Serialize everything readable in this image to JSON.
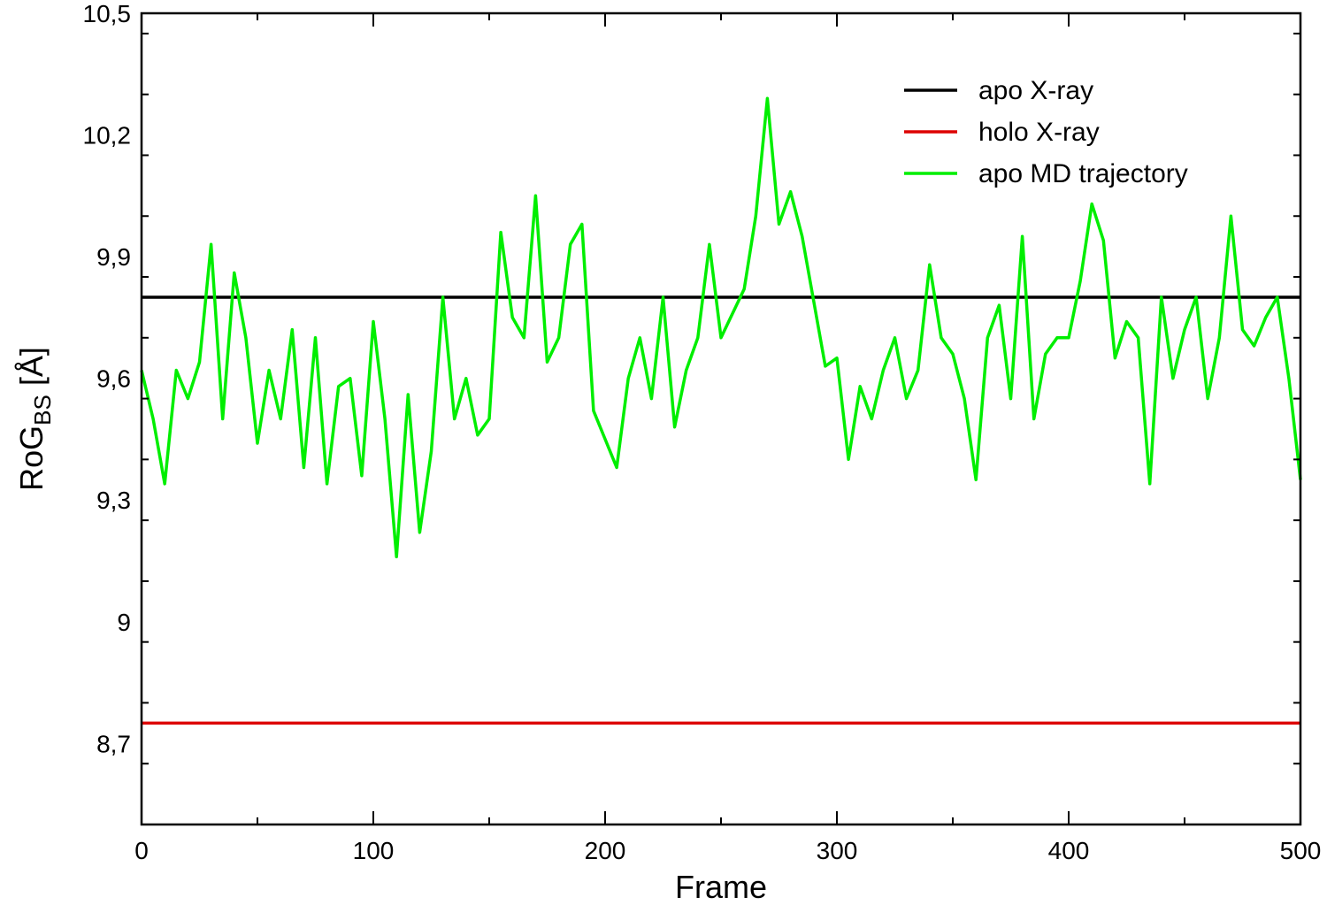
{
  "chart_data": {
    "type": "line",
    "xlabel": "Frame",
    "ylabel_main": "RoG",
    "ylabel_sub": "BS",
    "ylabel_unit": " [Å]",
    "xlim": [
      0,
      500
    ],
    "ylim": [
      8.5,
      10.5
    ],
    "x_ticks": [
      0,
      100,
      200,
      300,
      400,
      500
    ],
    "x_tick_labels": [
      "0",
      "100",
      "200",
      "300",
      "400",
      "500"
    ],
    "y_ticks": [
      8.7,
      9.0,
      9.3,
      9.6,
      9.9,
      10.2,
      10.5
    ],
    "y_tick_labels": [
      "8,7",
      "9",
      "9,3",
      "9,6",
      "9,9",
      "10,2",
      "10,5"
    ],
    "legend_position": "top-right",
    "series": [
      {
        "name": "apo X-ray",
        "color": "#000000",
        "kind": "hline",
        "value": 9.8
      },
      {
        "name": "holo X-ray",
        "color": "#dd0000",
        "kind": "hline",
        "value": 8.75
      },
      {
        "name": "apo MD trajectory",
        "color": "#00ee00",
        "kind": "line",
        "x": [
          0,
          5,
          10,
          15,
          20,
          25,
          30,
          35,
          40,
          45,
          50,
          55,
          60,
          65,
          70,
          75,
          80,
          85,
          90,
          95,
          100,
          105,
          110,
          115,
          120,
          125,
          130,
          135,
          140,
          145,
          150,
          155,
          160,
          165,
          170,
          175,
          180,
          185,
          190,
          195,
          200,
          205,
          210,
          215,
          220,
          225,
          230,
          235,
          240,
          245,
          250,
          255,
          260,
          265,
          270,
          275,
          280,
          285,
          290,
          295,
          300,
          305,
          310,
          315,
          320,
          325,
          330,
          335,
          340,
          345,
          350,
          355,
          360,
          365,
          370,
          375,
          380,
          385,
          390,
          395,
          400,
          405,
          410,
          415,
          420,
          425,
          430,
          435,
          440,
          445,
          450,
          455,
          460,
          465,
          470,
          475,
          480,
          485,
          490,
          495,
          500
        ],
        "values": [
          9.62,
          9.5,
          9.34,
          9.62,
          9.55,
          9.64,
          9.93,
          9.5,
          9.86,
          9.7,
          9.44,
          9.62,
          9.5,
          9.72,
          9.38,
          9.7,
          9.34,
          9.58,
          9.6,
          9.36,
          9.74,
          9.5,
          9.16,
          9.56,
          9.22,
          9.42,
          9.8,
          9.5,
          9.6,
          9.46,
          9.5,
          9.96,
          9.75,
          9.7,
          10.05,
          9.64,
          9.7,
          9.93,
          9.98,
          9.52,
          9.45,
          9.38,
          9.6,
          9.7,
          9.55,
          9.8,
          9.48,
          9.62,
          9.7,
          9.93,
          9.7,
          9.76,
          9.82,
          10.0,
          10.29,
          9.98,
          10.06,
          9.95,
          9.79,
          9.63,
          9.65,
          9.4,
          9.58,
          9.5,
          9.62,
          9.7,
          9.55,
          9.62,
          9.88,
          9.7,
          9.66,
          9.55,
          9.35,
          9.7,
          9.78,
          9.55,
          9.95,
          9.5,
          9.66,
          9.7,
          9.7,
          9.84,
          10.03,
          9.94,
          9.65,
          9.74,
          9.7,
          9.34,
          9.8,
          9.6,
          9.72,
          9.8,
          9.55,
          9.7,
          10.0,
          9.72,
          9.68,
          9.75,
          9.8,
          9.6,
          9.35
        ]
      }
    ]
  }
}
